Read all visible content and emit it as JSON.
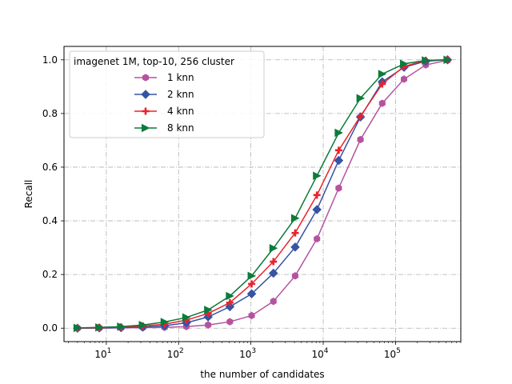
{
  "chart_data": {
    "type": "line",
    "xlabel": "the number of candidates",
    "ylabel": "Recall",
    "xscale": "log",
    "xlim": [
      2.6,
      800000
    ],
    "ylim": [
      -0.05,
      1.05
    ],
    "grid": "on, dash-dot gray",
    "legend_title": "imagenet 1M, top-10, 256 cluster",
    "legend_position": "upper-left",
    "x": [
      4,
      8,
      16,
      32,
      64,
      128,
      256,
      512,
      1024,
      2048,
      4096,
      8192,
      16384,
      32768,
      65536,
      131072,
      262144,
      524288
    ],
    "x_tick_labels": [
      {
        "exp": "1",
        "value": 10
      },
      {
        "exp": "2",
        "value": 100
      },
      {
        "exp": "3",
        "value": 1000
      },
      {
        "exp": "4",
        "value": 10000
      },
      {
        "exp": "5",
        "value": 100000
      }
    ],
    "x_tick_base": "10",
    "y_ticks": [
      0.0,
      0.2,
      0.4,
      0.6,
      0.8,
      1.0
    ],
    "y_tick_labels": [
      "0.0",
      "0.2",
      "0.4",
      "0.6",
      "0.8",
      "1.0"
    ],
    "series": [
      {
        "name": "1 knn",
        "color": "#b5539e",
        "marker": "hexagon",
        "values": [
          0.0,
          0.0,
          0.001,
          0.002,
          0.003,
          0.006,
          0.012,
          0.024,
          0.047,
          0.1,
          0.195,
          0.333,
          0.522,
          0.703,
          0.838,
          0.928,
          0.981,
          0.998
        ]
      },
      {
        "name": "2 knn",
        "color": "#3653a4",
        "marker": "diamond",
        "values": [
          0.0,
          0.001,
          0.002,
          0.004,
          0.009,
          0.02,
          0.042,
          0.08,
          0.128,
          0.205,
          0.302,
          0.442,
          0.625,
          0.787,
          0.918,
          0.972,
          0.995,
          1.0
        ]
      },
      {
        "name": "4 knn",
        "color": "#e8232c",
        "marker": "plus",
        "values": [
          0.0,
          0.002,
          0.004,
          0.008,
          0.015,
          0.03,
          0.055,
          0.095,
          0.165,
          0.248,
          0.355,
          0.496,
          0.663,
          0.79,
          0.91,
          0.975,
          0.998,
          1.0
        ]
      },
      {
        "name": "8 knn",
        "color": "#0c7b3b",
        "marker": "triangle-right",
        "values": [
          0.001,
          0.003,
          0.006,
          0.012,
          0.023,
          0.04,
          0.068,
          0.12,
          0.195,
          0.298,
          0.41,
          0.568,
          0.728,
          0.857,
          0.947,
          0.985,
          0.998,
          1.0
        ]
      }
    ]
  }
}
